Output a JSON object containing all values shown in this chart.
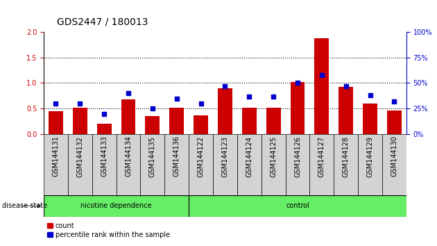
{
  "title": "GDS2447 / 180013",
  "categories": [
    "GSM144131",
    "GSM144132",
    "GSM144133",
    "GSM144134",
    "GSM144135",
    "GSM144136",
    "GSM144122",
    "GSM144123",
    "GSM144124",
    "GSM144125",
    "GSM144126",
    "GSM144127",
    "GSM144128",
    "GSM144129",
    "GSM144130"
  ],
  "counts": [
    0.45,
    0.52,
    0.2,
    0.68,
    0.35,
    0.52,
    0.37,
    0.9,
    0.52,
    0.52,
    1.02,
    1.88,
    0.93,
    0.6,
    0.46
  ],
  "percentiles": [
    30,
    30,
    20,
    40,
    25,
    35,
    30,
    47,
    37,
    37,
    50,
    58,
    47,
    38,
    32
  ],
  "group1_count": 6,
  "group1_label": "nicotine dependence",
  "group2_label": "control",
  "bar_color": "#cc0000",
  "dot_color": "#0000cc",
  "legend_count_label": "count",
  "legend_pct_label": "percentile rank within the sample",
  "ylim_left": [
    0,
    2
  ],
  "ylim_right": [
    0,
    100
  ],
  "yticks_left": [
    0,
    0.5,
    1.0,
    1.5,
    2.0
  ],
  "yticks_right": [
    0,
    25,
    50,
    75,
    100
  ],
  "plot_bg": "#ffffff",
  "xtick_bg": "#d3d3d3",
  "group_bg": "#66ee66",
  "title_fontsize": 10,
  "tick_fontsize": 7,
  "label_fontsize": 7
}
